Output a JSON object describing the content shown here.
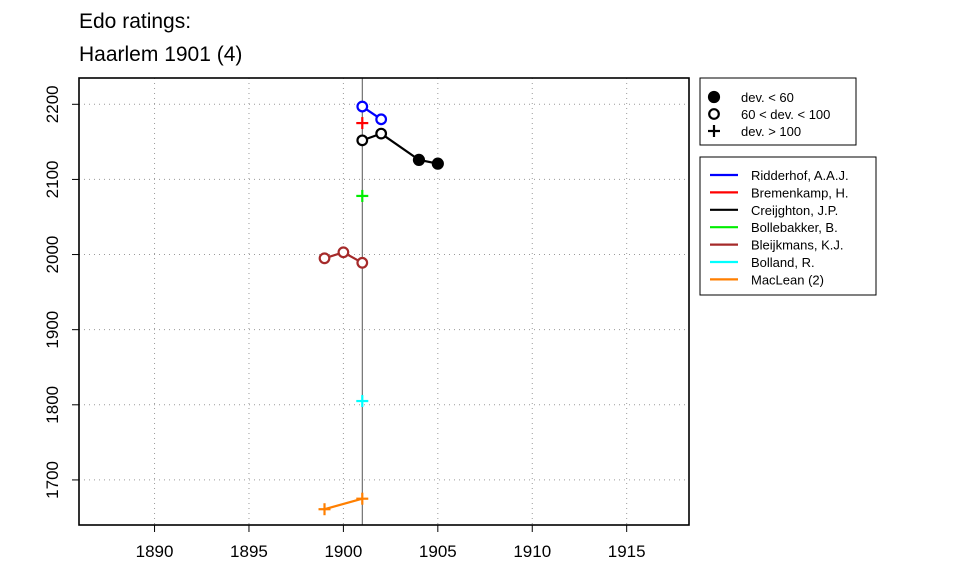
{
  "chart_data": {
    "type": "line",
    "title": "Edo ratings:",
    "subtitle": "Haarlem 1901 (4)",
    "xlabel": "",
    "ylabel": "",
    "xlim": [
      1886,
      1918.3
    ],
    "ylim": [
      1640,
      2235
    ],
    "x_ticks": [
      1890,
      1895,
      1900,
      1905,
      1910,
      1915
    ],
    "y_ticks": [
      1700,
      1800,
      1900,
      2000,
      2100,
      2200
    ],
    "grid": true,
    "reference_line_x": 1901,
    "symbol_legend": [
      {
        "symbol": "filled-circle",
        "label": "dev. < 60"
      },
      {
        "symbol": "open-circle",
        "label": "60 < dev. < 100"
      },
      {
        "symbol": "plus",
        "label": "dev. > 100"
      }
    ],
    "series": [
      {
        "name": "Ridderhof, A.A.J.",
        "color": "#0000ff",
        "points": [
          {
            "x": 1901,
            "y": 2197,
            "marker": "open-circle"
          },
          {
            "x": 1902,
            "y": 2180,
            "marker": "open-circle"
          }
        ]
      },
      {
        "name": "Bremenkamp, H.",
        "color": "#ff0000",
        "points": [
          {
            "x": 1901,
            "y": 2175,
            "marker": "plus"
          }
        ]
      },
      {
        "name": "Creijghton, J.P.",
        "color": "#000000",
        "points": [
          {
            "x": 1901,
            "y": 2152,
            "marker": "open-circle"
          },
          {
            "x": 1902,
            "y": 2161,
            "marker": "open-circle"
          },
          {
            "x": 1904,
            "y": 2126,
            "marker": "filled-circle"
          },
          {
            "x": 1905,
            "y": 2121,
            "marker": "filled-circle"
          }
        ]
      },
      {
        "name": "Bollebakker, B.",
        "color": "#00ee00",
        "points": [
          {
            "x": 1901,
            "y": 2078,
            "marker": "plus"
          }
        ]
      },
      {
        "name": "Bleijkmans, K.J.",
        "color": "#a52a2a",
        "points": [
          {
            "x": 1899,
            "y": 1995,
            "marker": "open-circle"
          },
          {
            "x": 1900,
            "y": 2003,
            "marker": "open-circle"
          },
          {
            "x": 1901,
            "y": 1989,
            "marker": "open-circle"
          }
        ]
      },
      {
        "name": "Bolland, R.",
        "color": "#00ffff",
        "points": [
          {
            "x": 1901,
            "y": 1805,
            "marker": "plus"
          }
        ]
      },
      {
        "name": "MacLean (2)",
        "color": "#ff7f00",
        "points": [
          {
            "x": 1899,
            "y": 1661,
            "marker": "plus"
          },
          {
            "x": 1901,
            "y": 1675,
            "marker": "plus"
          }
        ]
      }
    ]
  }
}
